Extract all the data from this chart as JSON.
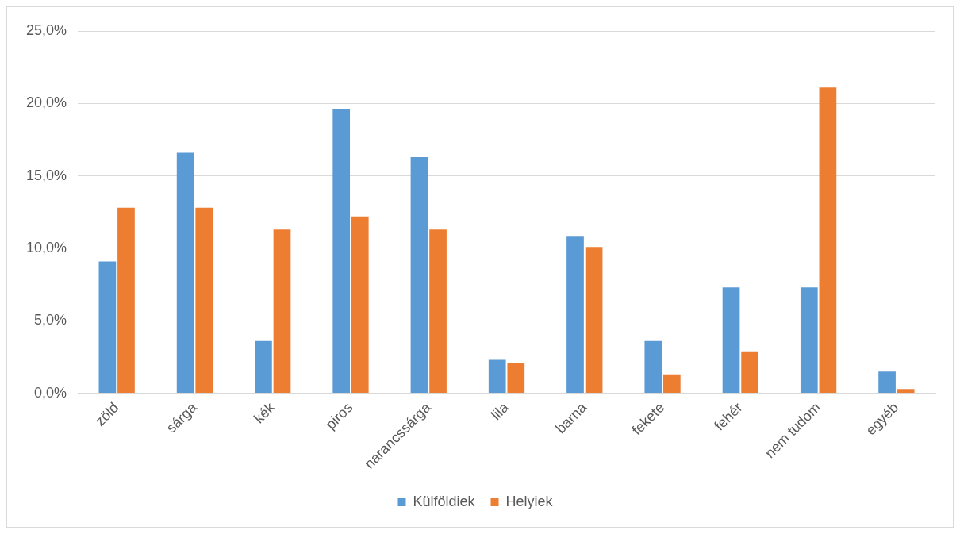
{
  "chart_data": {
    "type": "bar",
    "categories": [
      "zöld",
      "sárga",
      "kék",
      "piros",
      "narancssárga",
      "lila",
      "barna",
      "fekete",
      "fehér",
      "nem tudom",
      "egyéb"
    ],
    "series": [
      {
        "name": "Külföldiek",
        "color": "#5b9bd5",
        "values": [
          9.1,
          16.6,
          3.6,
          19.6,
          16.3,
          2.3,
          10.8,
          3.6,
          7.3,
          7.3,
          1.5
        ]
      },
      {
        "name": "Helyiek",
        "color": "#ed7d31",
        "values": [
          12.8,
          12.8,
          11.3,
          12.2,
          11.3,
          2.1,
          10.1,
          1.3,
          2.9,
          21.1,
          0.3
        ]
      }
    ],
    "ylim": [
      0,
      25
    ],
    "yticks": [
      {
        "value": 0,
        "label": "0,0%"
      },
      {
        "value": 5,
        "label": "5,0%"
      },
      {
        "value": 10,
        "label": "10,0%"
      },
      {
        "value": 15,
        "label": "15,0%"
      },
      {
        "value": 20,
        "label": "20,0%"
      },
      {
        "value": 25,
        "label": "25,0%"
      }
    ],
    "grid": "y",
    "legend": "bottom"
  }
}
